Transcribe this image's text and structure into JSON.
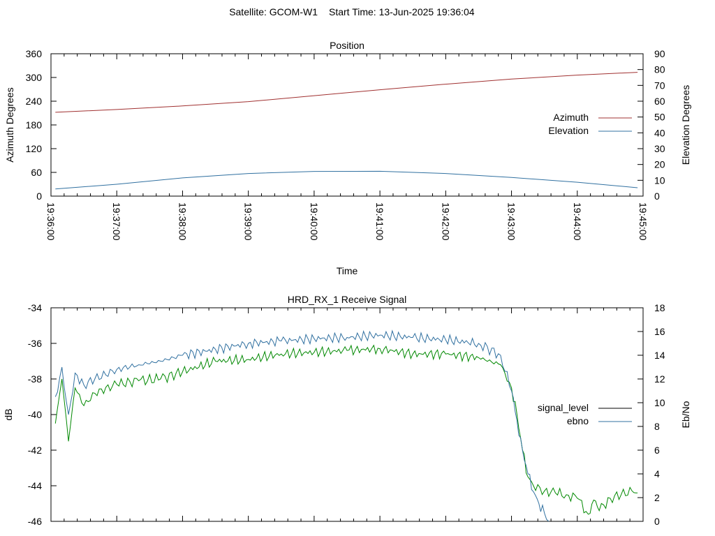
{
  "header": {
    "satellite": "Satellite: GCOM-W1",
    "start_time": "Start Time: 13-Jun-2025 19:36:04"
  },
  "chart_data": [
    {
      "type": "line",
      "title": "Position",
      "xlabel": "Time",
      "ylabel": "Azimuth Degrees",
      "y2label": "Elevation Degrees",
      "x_ticks": [
        "19:36:00",
        "19:37:00",
        "19:38:00",
        "19:39:00",
        "19:40:00",
        "19:41:00",
        "19:42:00",
        "19:43:00",
        "19:44:00",
        "19:45:00"
      ],
      "x_minor_ticks_per_major": 4,
      "ylim": [
        0,
        360
      ],
      "y_ticks": [
        0,
        60,
        120,
        180,
        240,
        300,
        360
      ],
      "y2lim": [
        0,
        90
      ],
      "y2_ticks": [
        0,
        10,
        20,
        30,
        40,
        50,
        60,
        70,
        80,
        90
      ],
      "legend_position": "right",
      "grid": false,
      "series": [
        {
          "name": "Azimuth",
          "axis": "left",
          "color": "#a03030",
          "x": [
            "19:36:04",
            "19:37:00",
            "19:38:00",
            "19:39:00",
            "19:40:00",
            "19:41:00",
            "19:42:00",
            "19:43:00",
            "19:44:00",
            "19:44:55"
          ],
          "values": [
            212,
            219,
            228,
            239,
            254,
            269,
            283,
            296,
            306,
            313
          ]
        },
        {
          "name": "Elevation",
          "axis": "right",
          "color": "#3070a0",
          "x": [
            "19:36:04",
            "19:37:00",
            "19:38:00",
            "19:39:00",
            "19:40:00",
            "19:41:00",
            "19:42:00",
            "19:43:00",
            "19:44:00",
            "19:44:55"
          ],
          "values": [
            4.5,
            7.5,
            11.5,
            14.3,
            15.6,
            15.7,
            14.3,
            11.8,
            8.8,
            5.3
          ]
        }
      ]
    },
    {
      "type": "line",
      "title": "HRD_RX_1 Receive Signal",
      "xlabel": "",
      "ylabel": "dB",
      "y2label": "Eb/No",
      "ylim": [
        -46,
        -34
      ],
      "y_ticks": [
        -46,
        -44,
        -42,
        -40,
        -38,
        -36,
        -34
      ],
      "y2lim": [
        0,
        18
      ],
      "y2_ticks": [
        0,
        2,
        4,
        6,
        8,
        10,
        12,
        14,
        16,
        18
      ],
      "legend_position": "right",
      "grid": false,
      "series": [
        {
          "name": "signal_level",
          "axis": "left",
          "color": "#000000",
          "plot_color": "#008800",
          "x": [
            "19:36:04",
            "19:36:10",
            "19:36:16",
            "19:36:22",
            "19:36:30",
            "19:36:40",
            "19:37:00",
            "19:37:20",
            "19:37:40",
            "19:38:00",
            "19:38:30",
            "19:39:00",
            "19:39:30",
            "19:40:00",
            "19:40:30",
            "19:41:00",
            "19:41:30",
            "19:42:00",
            "19:42:30",
            "19:42:50",
            "19:43:00",
            "19:43:05",
            "19:43:10",
            "19:43:15",
            "19:43:20",
            "19:43:30",
            "19:43:40",
            "19:43:50",
            "19:44:00",
            "19:44:10",
            "19:44:15",
            "19:44:20",
            "19:44:30",
            "19:44:40",
            "19:44:50",
            "19:44:55"
          ],
          "values": [
            -40.5,
            -38.0,
            -41.5,
            -38.5,
            -39.5,
            -38.8,
            -38.3,
            -38.1,
            -38.0,
            -37.6,
            -37.0,
            -36.9,
            -36.6,
            -36.5,
            -36.4,
            -36.3,
            -36.6,
            -36.6,
            -36.8,
            -37.2,
            -38.5,
            -40.0,
            -42.0,
            -43.5,
            -44.0,
            -44.3,
            -44.4,
            -44.5,
            -44.7,
            -45.6,
            -44.8,
            -45.4,
            -44.7,
            -44.5,
            -44.3,
            -44.4
          ]
        },
        {
          "name": "ebno",
          "axis": "right",
          "color": "#3070a0",
          "plot_color": "#3070a0",
          "x": [
            "19:36:04",
            "19:36:10",
            "19:36:16",
            "19:36:22",
            "19:36:30",
            "19:36:40",
            "19:37:00",
            "19:37:20",
            "19:37:40",
            "19:38:00",
            "19:38:30",
            "19:39:00",
            "19:39:30",
            "19:40:00",
            "19:40:30",
            "19:41:00",
            "19:41:30",
            "19:42:00",
            "19:42:30",
            "19:42:50",
            "19:43:00",
            "19:43:05",
            "19:43:10",
            "19:43:15",
            "19:43:20",
            "19:43:25",
            "19:43:30",
            "19:43:34"
          ],
          "values": [
            10.5,
            13.0,
            9.0,
            12.5,
            11.5,
            12.0,
            12.8,
            13.2,
            13.5,
            14.0,
            14.5,
            15.0,
            15.2,
            15.4,
            15.5,
            15.7,
            15.5,
            15.3,
            15.0,
            14.0,
            11.0,
            8.5,
            6.0,
            4.0,
            2.5,
            1.5,
            0.7,
            0.0
          ]
        }
      ]
    }
  ]
}
